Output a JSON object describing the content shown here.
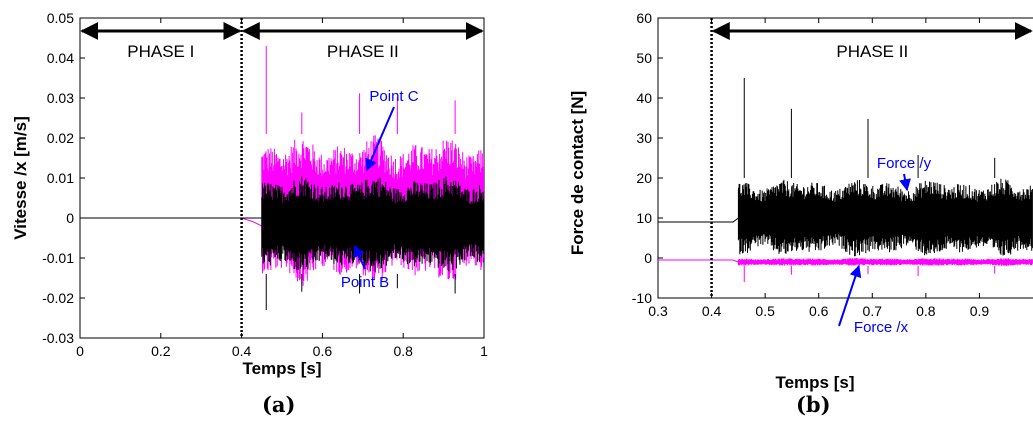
{
  "chart_data": [
    {
      "type": "line",
      "panel_label": "(a)",
      "xlabel": "Temps [s]",
      "ylabel": "Vitesse  /x [m/s]",
      "xlim": [
        0,
        1
      ],
      "ylim": [
        -0.03,
        0.05
      ],
      "xticks": [
        0,
        0.2,
        0.4,
        0.6,
        0.8,
        1
      ],
      "xtick_labels": [
        "0",
        "0.2",
        "0.4",
        "0.6",
        "0.8",
        "1"
      ],
      "yticks": [
        -0.03,
        -0.02,
        -0.01,
        0,
        0.01,
        0.02,
        0.03,
        0.04,
        0.05
      ],
      "ytick_labels": [
        "-0.03",
        "-0.02",
        "-0.01",
        "0",
        "0.01",
        "0.02",
        "0.03",
        "0.04",
        "0.05"
      ],
      "grid": false,
      "phase_boundary_x": 0.4,
      "phases": [
        {
          "label": "PHASE I",
          "x_start": 0,
          "x_end": 0.4
        },
        {
          "label": "PHASE II",
          "x_start": 0.4,
          "x_end": 1
        }
      ],
      "series": [
        {
          "name": "Point C",
          "color": "#ff00ff",
          "segments": [
            {
              "x": [
                0,
                0.4,
                0.43,
                0.45
              ],
              "y": [
                0,
                0,
                -0.001,
                -0.002
              ]
            },
            {
              "x_start": 0.45,
              "x_end": 1,
              "envelope_min": -0.017,
              "envelope_max": 0.021,
              "spike_max": 0.043
            }
          ]
        },
        {
          "name": "Point B",
          "color": "#000000",
          "segments": [
            {
              "x": [
                0,
                0.4,
                0.45
              ],
              "y": [
                0,
                0,
                0
              ]
            },
            {
              "x_start": 0.45,
              "x_end": 1,
              "envelope_min": -0.014,
              "envelope_max": 0.011,
              "spike_min": -0.023
            }
          ]
        }
      ],
      "annotations": [
        {
          "text": "Point C",
          "color": "#0000ff",
          "points_to_x": 0.71,
          "points_to_y": 0.012
        },
        {
          "text": "Point B",
          "color": "#0000ff",
          "points_to_x": 0.68,
          "points_to_y": -0.007
        }
      ]
    },
    {
      "type": "line",
      "panel_label": "(b)",
      "xlabel": "Temps [s]",
      "ylabel": "Force de contact  [N]",
      "xlim": [
        0.3,
        1
      ],
      "ylim": [
        -10,
        60
      ],
      "xticks": [
        0.3,
        0.4,
        0.5,
        0.6,
        0.7,
        0.8,
        0.9
      ],
      "xtick_labels": [
        "0.3",
        "0.4",
        "0.5",
        "0.6",
        "0.7",
        "0.8",
        "0.9"
      ],
      "yticks": [
        -10,
        0,
        10,
        20,
        30,
        40,
        50,
        60
      ],
      "ytick_labels": [
        "-10",
        "0",
        "10",
        "20",
        "30",
        "40",
        "50",
        "60"
      ],
      "grid": false,
      "phase_boundary_x": 0.4,
      "phases": [
        {
          "label": "PHASE II",
          "x_start": 0.4,
          "x_end": 1
        }
      ],
      "series": [
        {
          "name": "Force /y",
          "color": "#000000",
          "segments": [
            {
              "x": [
                0.3,
                0.44,
                0.45
              ],
              "y": [
                9,
                9,
                10
              ]
            },
            {
              "x_start": 0.45,
              "x_end": 1,
              "envelope_min": 0,
              "envelope_max": 20,
              "spike_max": 45
            }
          ]
        },
        {
          "name": "Force /x",
          "color": "#ff00ff",
          "segments": [
            {
              "x": [
                0.3,
                0.44,
                0.45
              ],
              "y": [
                -0.5,
                -0.5,
                -1
              ]
            },
            {
              "x_start": 0.45,
              "x_end": 1,
              "envelope_min": -2,
              "envelope_max": 0,
              "spike_min": -6
            }
          ]
        }
      ],
      "annotations": [
        {
          "text": "Force /y",
          "color": "#0000ff",
          "points_to_x": 0.765,
          "points_to_y": 17
        },
        {
          "text": "Force /x",
          "color": "#0000ff",
          "points_to_x": 0.675,
          "points_to_y": -2
        }
      ]
    }
  ]
}
